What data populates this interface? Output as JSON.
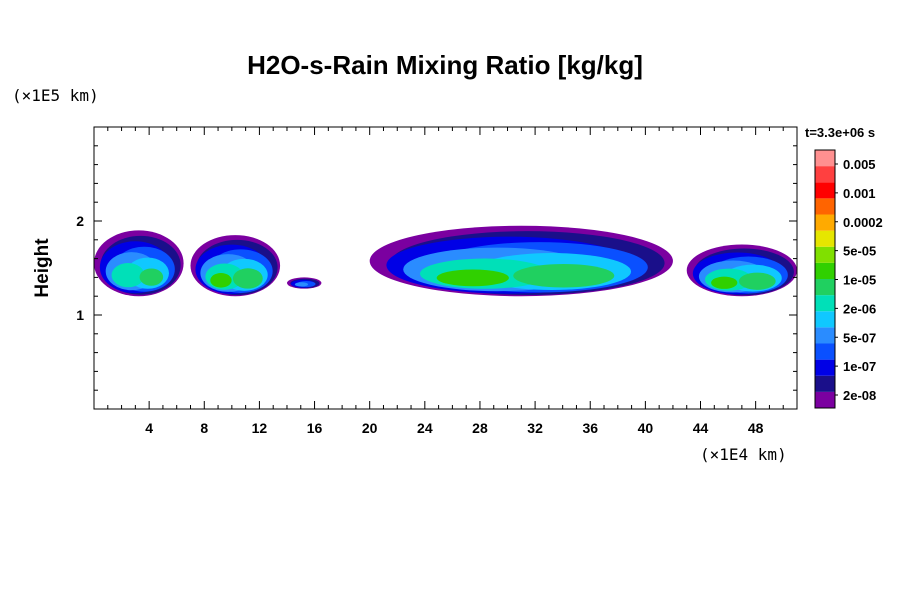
{
  "chart_data": {
    "type": "heatmap",
    "title": "H2O-s-Rain Mixing Ratio [kg/kg]",
    "ylabel": "Height",
    "xlabel": "",
    "x_unit": "(×1E4 km)",
    "y_unit": "(×1E5 km)",
    "xlim": [
      0,
      51
    ],
    "ylim": [
      0,
      3
    ],
    "x_ticks": [
      4,
      8,
      12,
      16,
      20,
      24,
      28,
      32,
      36,
      40,
      44,
      48
    ],
    "y_ticks": [
      1,
      2
    ],
    "colorbar": {
      "title": "t=3.3e+06 s",
      "labels": [
        "0.005",
        "0.001",
        "0.0002",
        "5e-05",
        "1e-05",
        "2e-06",
        "5e-07",
        "1e-07",
        "2e-08"
      ],
      "colors": [
        "#7b00a0",
        "#1a0f8a",
        "#0000e6",
        "#0a50ff",
        "#2a8cff",
        "#10c8ff",
        "#00e0b8",
        "#20d060",
        "#30d000",
        "#80e000",
        "#e6e600",
        "#ffaa00",
        "#ff6400",
        "#ff0000",
        "#ff4040",
        "#ff9090"
      ]
    },
    "clouds": [
      {
        "x": [
          0,
          6.5
        ],
        "y_base": 1.2,
        "y_top": 1.9,
        "peak_level": 8
      },
      {
        "x": [
          7,
          13.5
        ],
        "y_base": 1.2,
        "y_top": 1.85,
        "peak_level": 9
      },
      {
        "x": [
          14,
          16.5
        ],
        "y_base": 1.28,
        "y_top": 1.4,
        "peak_level": 5
      },
      {
        "x": [
          20,
          42
        ],
        "y_base": 1.2,
        "y_top": 1.95,
        "peak_level": 9
      },
      {
        "x": [
          43,
          51
        ],
        "y_base": 1.2,
        "y_top": 1.75,
        "peak_level": 9
      }
    ]
  }
}
